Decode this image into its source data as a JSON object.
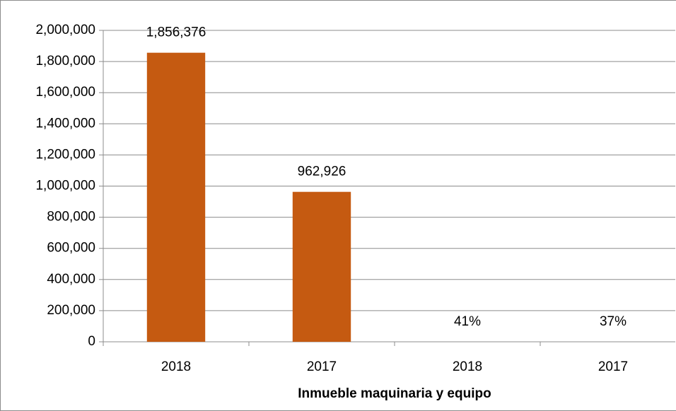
{
  "chart_data": {
    "type": "bar",
    "x_label": "Inmueble maquinaria y equipo",
    "categories": [
      "2018",
      "2017",
      "2018",
      "2017"
    ],
    "values": [
      1856376,
      962926,
      0.41,
      0.37
    ],
    "value_labels": [
      "1,856,376",
      "962,926",
      "41%",
      "37%"
    ],
    "color": "#c55a11",
    "ylim": [
      0,
      2000000
    ],
    "yticks": [
      0,
      {
        "value": 200000,
        "label": "200,000"
      },
      {
        "value": 400000,
        "label": "400,000"
      },
      {
        "value": 600000,
        "label": "600,000"
      },
      {
        "value": 800000,
        "label": "800,000"
      },
      {
        "value": 1000000,
        "label": "1,000,000"
      },
      {
        "value": 1200000,
        "label": "1,200,000"
      },
      {
        "value": 1400000,
        "label": "1,400,000"
      },
      {
        "value": 1600000,
        "label": "1,600,000"
      },
      {
        "value": 1800000,
        "label": "1,800,000"
      },
      {
        "value": 2000000,
        "label": "2,000,000"
      }
    ],
    "grid": true
  }
}
